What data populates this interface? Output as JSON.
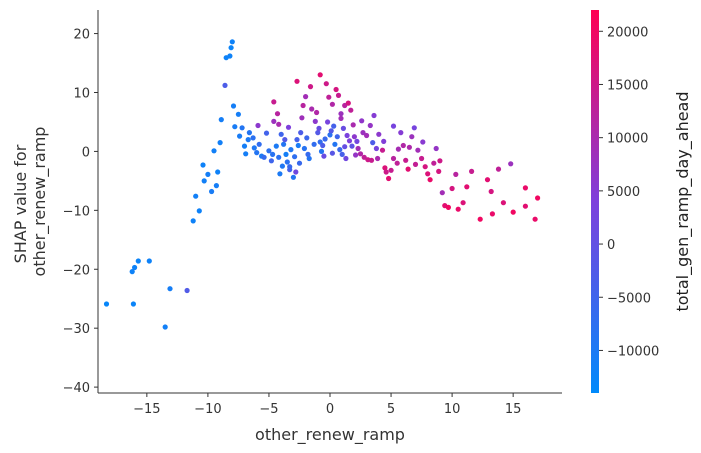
{
  "chart_data": {
    "type": "scatter",
    "xlabel": "other_renew_ramp",
    "ylabel_lines": [
      "SHAP value for",
      "other_renew_ramp"
    ],
    "colorbar_label": "total_gen_ramp_day_ahead",
    "xlim": [
      -19,
      19
    ],
    "ylim": [
      -41,
      24
    ],
    "x_ticks": [
      -15,
      -10,
      -5,
      0,
      5,
      10,
      15
    ],
    "x_tick_labels": [
      "−15",
      "−10",
      "−5",
      "0",
      "5",
      "10",
      "15"
    ],
    "y_ticks": [
      -40,
      -30,
      -20,
      -10,
      0,
      10,
      20
    ],
    "y_tick_labels": [
      "−40",
      "−30",
      "−20",
      "−10",
      "0",
      "10",
      "20"
    ],
    "color_range": [
      -14000,
      22000
    ],
    "color_ticks": [
      -10000,
      -5000,
      0,
      5000,
      10000,
      15000,
      20000
    ],
    "color_tick_labels": [
      "−10000",
      "−5000",
      "0",
      "5000",
      "10000",
      "15000",
      "20000"
    ],
    "colormap": [
      "#008afb",
      "#ff0052"
    ],
    "grid": false,
    "points": [
      {
        "x": -18.3,
        "y": -25.9,
        "c": -13000
      },
      {
        "x": -16.1,
        "y": -25.9,
        "c": -12500
      },
      {
        "x": -16.2,
        "y": -20.4,
        "c": -12000
      },
      {
        "x": -16.0,
        "y": -19.7,
        "c": -12000
      },
      {
        "x": -15.7,
        "y": -18.6,
        "c": -12500
      },
      {
        "x": -14.8,
        "y": -18.6,
        "c": -12000
      },
      {
        "x": -13.5,
        "y": -29.8,
        "c": -11500
      },
      {
        "x": -13.1,
        "y": -23.3,
        "c": -11000
      },
      {
        "x": -11.7,
        "y": -23.6,
        "c": -2500
      },
      {
        "x": -11.2,
        "y": -11.8,
        "c": -12000
      },
      {
        "x": -10.7,
        "y": -10.1,
        "c": -12000
      },
      {
        "x": -11.0,
        "y": -7.6,
        "c": -11500
      },
      {
        "x": -10.3,
        "y": -5.0,
        "c": -11500
      },
      {
        "x": -10.0,
        "y": -3.9,
        "c": -11000
      },
      {
        "x": -9.7,
        "y": -6.8,
        "c": -10500
      },
      {
        "x": -9.3,
        "y": -5.8,
        "c": -11000
      },
      {
        "x": -9.2,
        "y": -3.5,
        "c": -12000
      },
      {
        "x": -10.4,
        "y": -2.3,
        "c": -12000
      },
      {
        "x": -9.5,
        "y": 0.1,
        "c": -11500
      },
      {
        "x": -9.0,
        "y": 1.5,
        "c": -11500
      },
      {
        "x": -8.9,
        "y": 5.4,
        "c": -11000
      },
      {
        "x": -8.6,
        "y": 11.2,
        "c": -3000
      },
      {
        "x": -8.5,
        "y": 15.9,
        "c": -12000
      },
      {
        "x": -8.2,
        "y": 16.2,
        "c": -12000
      },
      {
        "x": -8.1,
        "y": 17.6,
        "c": -12500
      },
      {
        "x": -8.0,
        "y": 18.6,
        "c": -12000
      },
      {
        "x": -7.9,
        "y": 7.7,
        "c": -11000
      },
      {
        "x": -7.5,
        "y": 6.3,
        "c": -11000
      },
      {
        "x": -7.8,
        "y": 4.2,
        "c": -10500
      },
      {
        "x": -7.2,
        "y": 4.0,
        "c": -9000
      },
      {
        "x": -6.7,
        "y": 2.0,
        "c": -10000
      },
      {
        "x": -6.9,
        "y": -0.4,
        "c": -11000
      },
      {
        "x": -6.2,
        "y": 0.6,
        "c": -9500
      },
      {
        "x": -5.6,
        "y": -0.8,
        "c": -10000
      },
      {
        "x": -5.0,
        "y": 0.1,
        "c": -8000
      },
      {
        "x": -4.6,
        "y": 8.4,
        "c": 14000
      },
      {
        "x": -4.3,
        "y": 6.4,
        "c": 12000
      },
      {
        "x": -4.6,
        "y": 5.1,
        "c": 8000
      },
      {
        "x": -4.2,
        "y": 4.6,
        "c": 10000
      },
      {
        "x": -4.0,
        "y": 2.9,
        "c": -5000
      },
      {
        "x": -3.8,
        "y": 1.2,
        "c": -9000
      },
      {
        "x": -3.6,
        "y": -0.5,
        "c": -11000
      },
      {
        "x": -3.5,
        "y": -1.8,
        "c": -8000
      },
      {
        "x": -3.3,
        "y": -3.1,
        "c": -4000
      },
      {
        "x": -3.9,
        "y": -2.5,
        "c": -9500
      },
      {
        "x": -4.2,
        "y": -1.0,
        "c": -8000
      },
      {
        "x": -3.0,
        "y": -4.4,
        "c": -9000
      },
      {
        "x": -2.8,
        "y": -3.5,
        "c": 2000
      },
      {
        "x": -2.5,
        "y": -2.0,
        "c": -6000
      },
      {
        "x": -2.6,
        "y": 1.0,
        "c": -10500
      },
      {
        "x": -2.4,
        "y": 3.2,
        "c": -3000
      },
      {
        "x": -2.2,
        "y": 7.8,
        "c": 12000
      },
      {
        "x": -2.0,
        "y": 9.3,
        "c": 9000
      },
      {
        "x": -2.7,
        "y": 11.9,
        "c": 17000
      },
      {
        "x": -1.6,
        "y": 11.0,
        "c": 15000
      },
      {
        "x": -1.5,
        "y": 7.2,
        "c": 10000
      },
      {
        "x": -1.2,
        "y": 5.1,
        "c": 6000
      },
      {
        "x": -1.0,
        "y": 3.2,
        "c": -2000
      },
      {
        "x": -0.8,
        "y": 1.6,
        "c": -7000
      },
      {
        "x": -0.7,
        "y": 0.0,
        "c": -9000
      },
      {
        "x": -0.5,
        "y": -0.8,
        "c": 1000
      },
      {
        "x": -1.7,
        "y": -1.2,
        "c": -9000
      },
      {
        "x": -0.8,
        "y": 13.0,
        "c": 18000
      },
      {
        "x": -0.3,
        "y": 11.5,
        "c": 15000
      },
      {
        "x": -0.1,
        "y": 9.2,
        "c": 13000
      },
      {
        "x": 0.2,
        "y": 8.0,
        "c": 11000
      },
      {
        "x": 0.5,
        "y": 10.5,
        "c": 16000
      },
      {
        "x": 0.7,
        "y": 9.5,
        "c": 14000
      },
      {
        "x": 0.9,
        "y": 6.4,
        "c": 8000
      },
      {
        "x": 1.2,
        "y": 7.8,
        "c": 12000
      },
      {
        "x": 1.5,
        "y": 8.2,
        "c": 16000
      },
      {
        "x": 1.7,
        "y": 7.0,
        "c": 13000
      },
      {
        "x": 1.9,
        "y": 4.5,
        "c": 10000
      },
      {
        "x": 0.3,
        "y": 4.3,
        "c": -4000
      },
      {
        "x": 0.0,
        "y": 2.8,
        "c": -8000
      },
      {
        "x": 0.4,
        "y": 1.2,
        "c": -9000
      },
      {
        "x": 0.8,
        "y": 0.3,
        "c": -6000
      },
      {
        "x": 1.0,
        "y": -0.5,
        "c": -4000
      },
      {
        "x": 1.3,
        "y": -1.2,
        "c": 2000
      },
      {
        "x": 1.6,
        "y": 1.8,
        "c": 4000
      },
      {
        "x": 2.0,
        "y": 2.5,
        "c": 6000
      },
      {
        "x": 2.3,
        "y": 0.5,
        "c": 9000
      },
      {
        "x": 2.5,
        "y": -0.4,
        "c": 11000
      },
      {
        "x": 2.8,
        "y": -1.0,
        "c": 13000
      },
      {
        "x": 3.1,
        "y": -1.4,
        "c": 15000
      },
      {
        "x": 3.4,
        "y": -1.5,
        "c": 14000
      },
      {
        "x": 2.7,
        "y": 3.2,
        "c": 8000
      },
      {
        "x": 3.0,
        "y": 2.7,
        "c": 9000
      },
      {
        "x": 3.3,
        "y": 4.4,
        "c": 7000
      },
      {
        "x": 3.6,
        "y": 6.1,
        "c": 5000
      },
      {
        "x": 3.5,
        "y": 1.5,
        "c": -3000
      },
      {
        "x": 3.8,
        "y": 0.5,
        "c": 3000
      },
      {
        "x": 4.0,
        "y": 2.9,
        "c": 6000
      },
      {
        "x": 4.3,
        "y": 0.2,
        "c": 14000
      },
      {
        "x": 4.5,
        "y": -2.8,
        "c": 17000
      },
      {
        "x": 4.8,
        "y": -4.6,
        "c": 18000
      },
      {
        "x": 4.6,
        "y": -3.5,
        "c": 15000
      },
      {
        "x": 5.0,
        "y": -3.2,
        "c": 14000
      },
      {
        "x": 5.2,
        "y": -1.2,
        "c": 12000
      },
      {
        "x": 5.5,
        "y": -2.0,
        "c": 13000
      },
      {
        "x": 5.2,
        "y": 4.3,
        "c": 3000
      },
      {
        "x": 5.8,
        "y": 3.2,
        "c": 5000
      },
      {
        "x": 6.0,
        "y": 1.0,
        "c": 11000
      },
      {
        "x": 6.2,
        "y": -1.5,
        "c": 14000
      },
      {
        "x": 6.4,
        "y": -3.0,
        "c": 18000
      },
      {
        "x": 6.7,
        "y": 2.5,
        "c": 8000
      },
      {
        "x": 6.9,
        "y": 4.0,
        "c": 3000
      },
      {
        "x": 7.2,
        "y": 0.2,
        "c": 9000
      },
      {
        "x": 7.5,
        "y": -1.2,
        "c": 14000
      },
      {
        "x": 7.8,
        "y": -2.6,
        "c": 16000
      },
      {
        "x": 8.0,
        "y": -3.8,
        "c": 17000
      },
      {
        "x": 8.2,
        "y": -4.8,
        "c": 19000
      },
      {
        "x": 8.5,
        "y": -2.0,
        "c": 13000
      },
      {
        "x": 8.7,
        "y": 0.5,
        "c": 7000
      },
      {
        "x": 9.0,
        "y": -1.6,
        "c": 15000
      },
      {
        "x": 9.2,
        "y": -7.0,
        "c": 9000
      },
      {
        "x": 9.4,
        "y": -9.2,
        "c": 18000
      },
      {
        "x": 9.7,
        "y": -9.5,
        "c": 20000
      },
      {
        "x": 10.0,
        "y": -6.3,
        "c": 16000
      },
      {
        "x": 10.3,
        "y": -3.9,
        "c": 12000
      },
      {
        "x": 10.5,
        "y": -9.8,
        "c": 19000
      },
      {
        "x": 10.9,
        "y": -8.7,
        "c": 17000
      },
      {
        "x": 11.2,
        "y": -6.0,
        "c": 18000
      },
      {
        "x": 11.6,
        "y": -3.4,
        "c": 14000
      },
      {
        "x": 12.3,
        "y": -11.5,
        "c": 20000
      },
      {
        "x": 12.9,
        "y": -4.8,
        "c": 18000
      },
      {
        "x": 13.2,
        "y": -6.8,
        "c": 16000
      },
      {
        "x": 13.3,
        "y": -10.6,
        "c": 19000
      },
      {
        "x": 13.8,
        "y": -3.0,
        "c": 13000
      },
      {
        "x": 14.2,
        "y": -8.7,
        "c": 17000
      },
      {
        "x": 14.8,
        "y": -2.1,
        "c": 8000
      },
      {
        "x": 15.0,
        "y": -10.3,
        "c": 20000
      },
      {
        "x": 16.0,
        "y": -9.3,
        "c": 18000
      },
      {
        "x": 16.0,
        "y": -6.2,
        "c": 19000
      },
      {
        "x": 16.8,
        "y": -11.5,
        "c": 19000
      },
      {
        "x": 17.0,
        "y": -7.9,
        "c": 20000
      },
      {
        "x": -6.3,
        "y": 2.3,
        "c": -8000
      },
      {
        "x": -5.8,
        "y": 1.2,
        "c": -7000
      },
      {
        "x": -5.4,
        "y": -1.0,
        "c": -6500
      },
      {
        "x": -5.2,
        "y": 3.1,
        "c": -4500
      },
      {
        "x": -4.8,
        "y": -1.6,
        "c": -5000
      },
      {
        "x": -4.4,
        "y": 0.9,
        "c": -10000
      },
      {
        "x": -3.7,
        "y": 2.0,
        "c": -2000
      },
      {
        "x": -3.2,
        "y": 0.3,
        "c": -9500
      },
      {
        "x": -2.9,
        "y": -0.9,
        "c": -7500
      },
      {
        "x": -2.1,
        "y": 0.5,
        "c": -8500
      },
      {
        "x": -1.9,
        "y": 2.3,
        "c": -5500
      },
      {
        "x": -1.3,
        "y": 1.2,
        "c": -7000
      },
      {
        "x": -0.9,
        "y": 3.9,
        "c": 500
      },
      {
        "x": -0.4,
        "y": 2.1,
        "c": -6000
      },
      {
        "x": -0.2,
        "y": 5.0,
        "c": 3000
      },
      {
        "x": 0.1,
        "y": 3.5,
        "c": -2000
      },
      {
        "x": 0.6,
        "y": 2.5,
        "c": -5000
      },
      {
        "x": 1.1,
        "y": 3.9,
        "c": 1000
      },
      {
        "x": 1.4,
        "y": 2.7,
        "c": 3500
      },
      {
        "x": 1.8,
        "y": 0.9,
        "c": -500
      },
      {
        "x": 2.2,
        "y": 1.7,
        "c": 2500
      },
      {
        "x": 2.6,
        "y": 5.2,
        "c": 6500
      },
      {
        "x": 0.9,
        "y": 5.6,
        "c": 9000
      },
      {
        "x": -1.1,
        "y": 6.6,
        "c": 11000
      },
      {
        "x": -2.3,
        "y": 5.7,
        "c": 8500
      },
      {
        "x": -3.4,
        "y": 4.1,
        "c": 4000
      },
      {
        "x": -5.9,
        "y": 4.4,
        "c": 6000
      },
      {
        "x": -6.6,
        "y": 3.2,
        "c": -9000
      },
      {
        "x": -7.4,
        "y": 2.6,
        "c": -10500
      },
      {
        "x": -7.0,
        "y": 0.9,
        "c": -11000
      },
      {
        "x": -6.0,
        "y": -0.2,
        "c": -9000
      },
      {
        "x": -4.7,
        "y": -0.5,
        "c": -8500
      },
      {
        "x": -4.1,
        "y": -3.8,
        "c": -10000
      },
      {
        "x": -3.3,
        "y": -2.6,
        "c": -6000
      },
      {
        "x": -2.7,
        "y": 2.0,
        "c": -4000
      },
      {
        "x": -1.8,
        "y": -0.5,
        "c": -6500
      },
      {
        "x": -0.6,
        "y": 1.0,
        "c": -3000
      },
      {
        "x": 0.2,
        "y": -0.3,
        "c": -1500
      },
      {
        "x": 1.2,
        "y": 0.8,
        "c": 500
      },
      {
        "x": 2.1,
        "y": -0.6,
        "c": 7000
      },
      {
        "x": 3.9,
        "y": -1.2,
        "c": 10000
      },
      {
        "x": 4.4,
        "y": 1.7,
        "c": 4500
      },
      {
        "x": 5.6,
        "y": 0.4,
        "c": 9500
      },
      {
        "x": 7.0,
        "y": -2.2,
        "c": 13500
      },
      {
        "x": 8.9,
        "y": -3.4,
        "c": 16000
      },
      {
        "x": 7.6,
        "y": 1.6,
        "c": 5500
      },
      {
        "x": 6.5,
        "y": 0.7,
        "c": 10500
      }
    ]
  }
}
